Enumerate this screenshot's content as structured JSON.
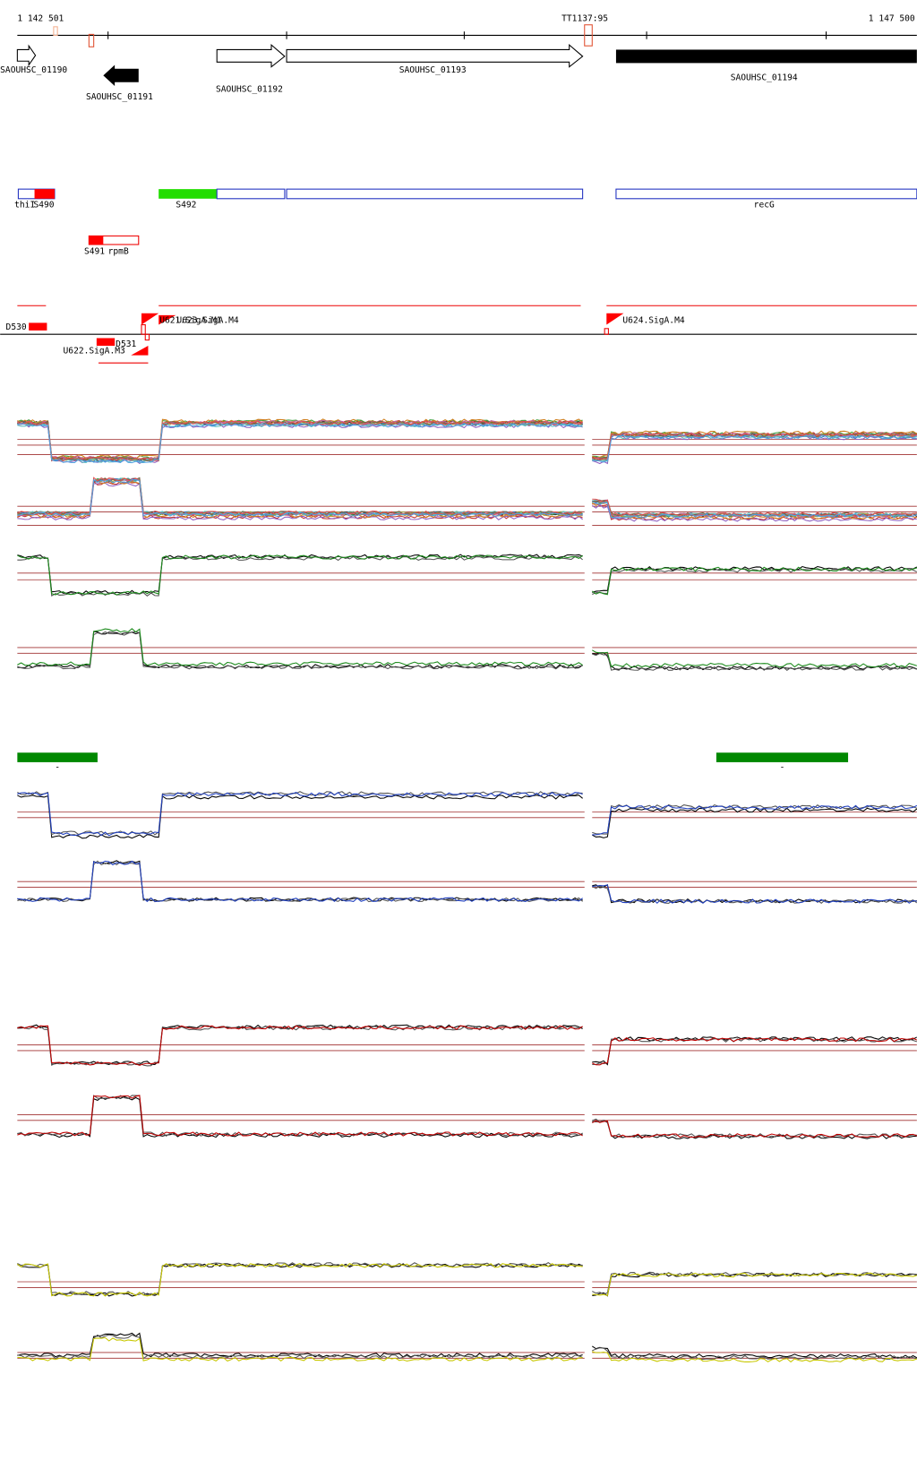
{
  "ruler": {
    "start": "1 142 501",
    "marker": "TT1137:95",
    "end": "1 147 500"
  },
  "genes": [
    "SAOUHSC_01190",
    "SAOUHSC_01191",
    "SAOUHSC_01192",
    "SAOUHSC_01193",
    "SAOUHSC_01194"
  ],
  "features": [
    "thiI",
    "S490",
    "S492",
    "recG",
    "S491",
    "rpmB"
  ],
  "promoters": [
    "D530",
    "U621.SigA.M1",
    "U623.SigA.M4",
    "U624.SigA.M4",
    "D531",
    "U622.SigA.M3"
  ],
  "markers": [
    "-",
    "-"
  ]
}
